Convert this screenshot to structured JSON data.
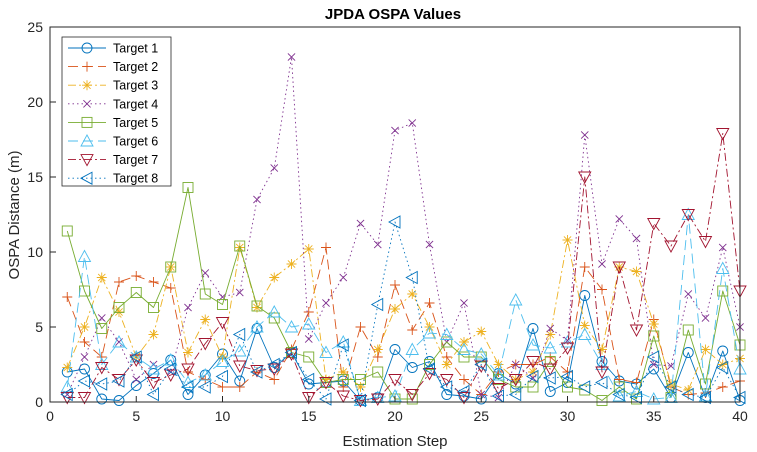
{
  "chart_data": {
    "type": "line",
    "title": "JPDA OSPA Values",
    "xlabel": "Estimation Step",
    "ylabel": "OSPA Distance (m)",
    "xlim": [
      0,
      40
    ],
    "ylim": [
      0,
      25
    ],
    "xticks": [
      0,
      5,
      10,
      15,
      20,
      25,
      30,
      35,
      40
    ],
    "yticks": [
      0,
      5,
      10,
      15,
      20,
      25
    ],
    "grid": false,
    "legend_position": "top-left",
    "x": [
      1,
      2,
      3,
      4,
      5,
      6,
      7,
      8,
      9,
      10,
      11,
      12,
      13,
      14,
      15,
      16,
      17,
      18,
      19,
      20,
      21,
      22,
      23,
      24,
      25,
      26,
      27,
      28,
      29,
      30,
      31,
      32,
      33,
      34,
      35,
      36,
      37,
      38,
      39,
      40
    ],
    "series": [
      {
        "name": "Target 1",
        "color": "#0072BD",
        "marker": "circle",
        "dash": "",
        "values": [
          2.0,
          2.2,
          0.2,
          0.1,
          1.1,
          1.9,
          2.8,
          0.5,
          1.8,
          3.2,
          1.4,
          4.9,
          2.3,
          3.3,
          1.2,
          1.3,
          1.4,
          0.1,
          0.3,
          3.5,
          2.3,
          2.7,
          0.5,
          0.4,
          0.2,
          1.9,
          1.2,
          4.9,
          0.7,
          1.3,
          7.1,
          2.7,
          1.4,
          1.2,
          2.2,
          0.3,
          3.3,
          0.3,
          3.4,
          0.1
        ]
      },
      {
        "name": "Target 2",
        "color": "#D95319",
        "marker": "plus",
        "dash": "10 5",
        "values": [
          7.0,
          4.0,
          3.0,
          8.0,
          8.4,
          8.0,
          7.6,
          2.0,
          1.5,
          1.0,
          1.0,
          2.0,
          1.5,
          3.5,
          6.0,
          10.3,
          1.0,
          5.0,
          3.0,
          7.8,
          4.8,
          6.6,
          3.0,
          1.5,
          0.5,
          2.0,
          2.5,
          2.5,
          3.0,
          2.0,
          9.0,
          7.5,
          1.5,
          1.3,
          5.5,
          1.0,
          0.5,
          0.6,
          1.0,
          1.4
        ]
      },
      {
        "name": "Target 3",
        "color": "#EDB120",
        "marker": "star",
        "dash": "8 3 2 3",
        "values": [
          2.3,
          5.0,
          8.3,
          6.0,
          3.0,
          4.5,
          9.0,
          3.3,
          5.5,
          3.0,
          10.3,
          6.3,
          8.3,
          9.2,
          10.2,
          1.5,
          2.0,
          1.0,
          3.5,
          6.2,
          7.2,
          5.0,
          2.5,
          4.0,
          4.7,
          2.5,
          1.5,
          2.0,
          4.5,
          10.8,
          5.1,
          3.5,
          9.0,
          8.7,
          5.2,
          1.2,
          0.8,
          3.5,
          2.5,
          2.9
        ]
      },
      {
        "name": "Target 4",
        "color": "#7E2F8E",
        "marker": "cross",
        "dash": "1.5 3",
        "values": [
          0.5,
          3.0,
          5.6,
          4.0,
          1.5,
          2.5,
          2.0,
          6.3,
          8.6,
          7.0,
          7.3,
          13.5,
          15.6,
          23.0,
          4.2,
          6.6,
          8.3,
          11.9,
          10.5,
          18.1,
          18.6,
          10.5,
          4.0,
          6.6,
          0.5,
          0.3,
          2.5,
          1.6,
          4.9,
          4.1,
          17.8,
          9.2,
          12.2,
          10.9,
          2.5,
          2.4,
          7.2,
          5.6,
          10.3,
          5.0
        ]
      },
      {
        "name": "Target 5",
        "color": "#77AC30",
        "marker": "square",
        "dash": "",
        "values": [
          11.4,
          7.4,
          4.9,
          6.3,
          7.3,
          6.3,
          9.0,
          14.3,
          7.2,
          6.5,
          10.4,
          6.4,
          5.6,
          3.3,
          3.0,
          1.3,
          1.5,
          1.5,
          2.0,
          0.2,
          0.2,
          2.5,
          4.0,
          3.0,
          3.0,
          1.5,
          1.0,
          1.0,
          2.7,
          1.0,
          0.8,
          0.1,
          1.0,
          0.2,
          4.4,
          0.3,
          4.8,
          1.2,
          7.4,
          3.8
        ]
      },
      {
        "name": "Target 6",
        "color": "#4DBEEE",
        "marker": "triangle-up",
        "dash": "10 5",
        "values": [
          1.0,
          9.7,
          2.5,
          4.0,
          3.0,
          2.2,
          2.8,
          1.3,
          1.8,
          2.7,
          3.4,
          5.0,
          6.0,
          5.0,
          5.2,
          3.3,
          4.0,
          0.1,
          0.3,
          0.4,
          3.5,
          4.6,
          4.5,
          3.5,
          3.2,
          1.8,
          6.8,
          3.8,
          3.6,
          4.0,
          4.5,
          2.5,
          0.4,
          0.7,
          0.2,
          0.3,
          12.5,
          0.4,
          8.9,
          2.2
        ]
      },
      {
        "name": "Target 7",
        "color": "#A2142F",
        "marker": "triangle-down",
        "dash": "8 3 2 3",
        "values": [
          0.3,
          0.3,
          2.3,
          1.5,
          2.8,
          1.3,
          1.8,
          2.2,
          3.9,
          5.3,
          2.4,
          2.1,
          2.2,
          3.2,
          0.3,
          1.3,
          0.4,
          0.1,
          0.2,
          1.5,
          0.5,
          1.9,
          1.5,
          0.3,
          2.4,
          0.9,
          1.5,
          2.7,
          2.2,
          3.6,
          15.0,
          2.0,
          9.0,
          4.8,
          11.9,
          10.4,
          12.5,
          10.7,
          17.9,
          7.4
        ]
      },
      {
        "name": "Target 8",
        "color": "#0072BD",
        "marker": "triangle-left",
        "dash": "1.5 3",
        "values": [
          0.5,
          1.4,
          1.2,
          1.4,
          3.0,
          0.5,
          2.2,
          1.0,
          1.0,
          1.7,
          4.5,
          2.0,
          2.5,
          3.3,
          1.5,
          0.2,
          3.8,
          0.1,
          6.5,
          12.0,
          8.3,
          2.2,
          1.0,
          0.7,
          2.5,
          0.4,
          0.5,
          1.7,
          1.6,
          1.7,
          1.0,
          1.3,
          0.5,
          0.3,
          3.0,
          1.0,
          0.5,
          0.3,
          2.3,
          0.3
        ]
      }
    ]
  }
}
